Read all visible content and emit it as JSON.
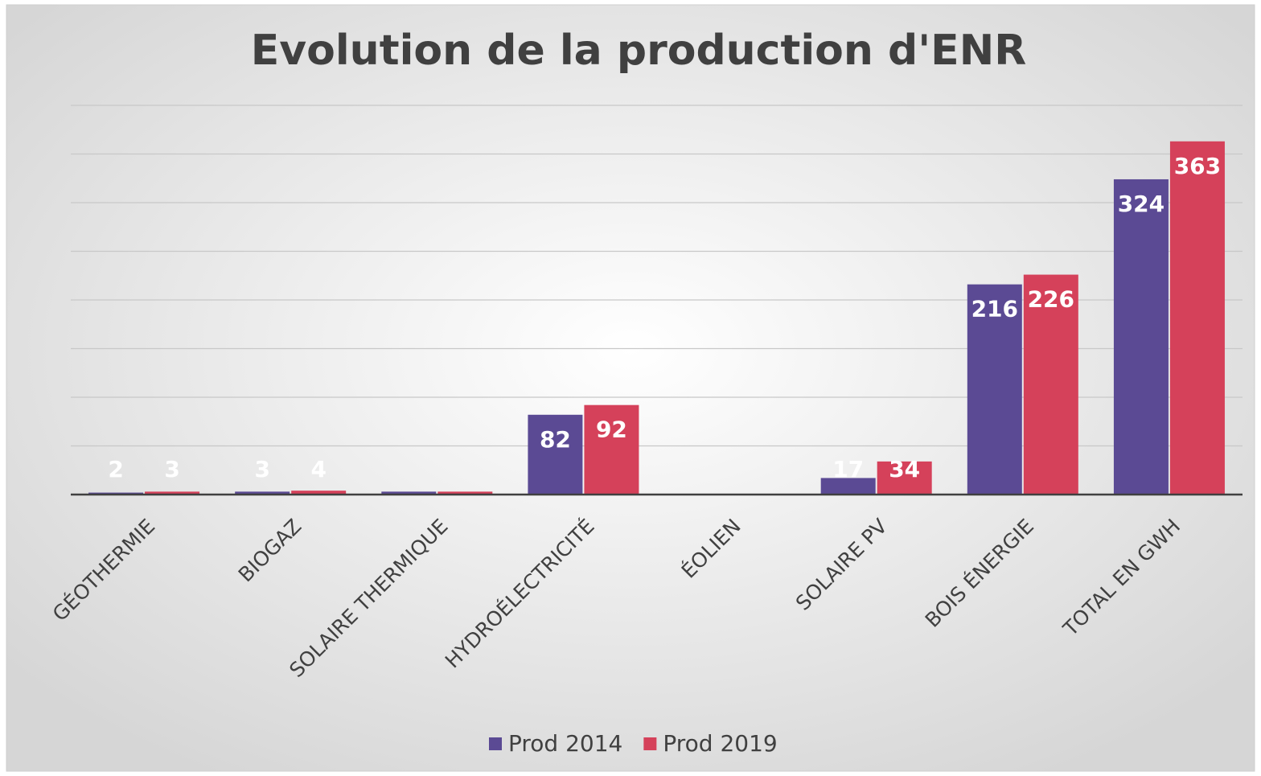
{
  "chart_data": {
    "type": "bar",
    "title": "Evolution de la production d'ENR",
    "categories": [
      "GÉOTHERMIE",
      "BIOGAZ",
      "SOLAIRE THERMIQUE",
      "HYDROÉLECTRICITÉ",
      "ÉOLIEN",
      "SOLAIRE PV",
      "BOIS ÉNERGIE",
      "TOTAL EN GWH"
    ],
    "series": [
      {
        "name": "Prod 2014",
        "color": "#5b4a94",
        "values": [
          2,
          3,
          3,
          82,
          0,
          17,
          216,
          324
        ],
        "value_labels": [
          "2",
          "3",
          null,
          "82",
          null,
          "17",
          "216",
          "324"
        ]
      },
      {
        "name": "Prod 2019",
        "color": "#d5415a",
        "values": [
          3,
          4,
          3,
          92,
          0,
          34,
          226,
          363
        ],
        "value_labels": [
          "3",
          "4",
          null,
          "92",
          null,
          "34",
          "226",
          "363"
        ]
      }
    ],
    "ylim": [
      0,
      400
    ],
    "yticks": [
      0,
      50,
      100,
      150,
      200,
      250,
      300,
      350,
      400
    ],
    "grid": true,
    "legend": "bottom"
  }
}
